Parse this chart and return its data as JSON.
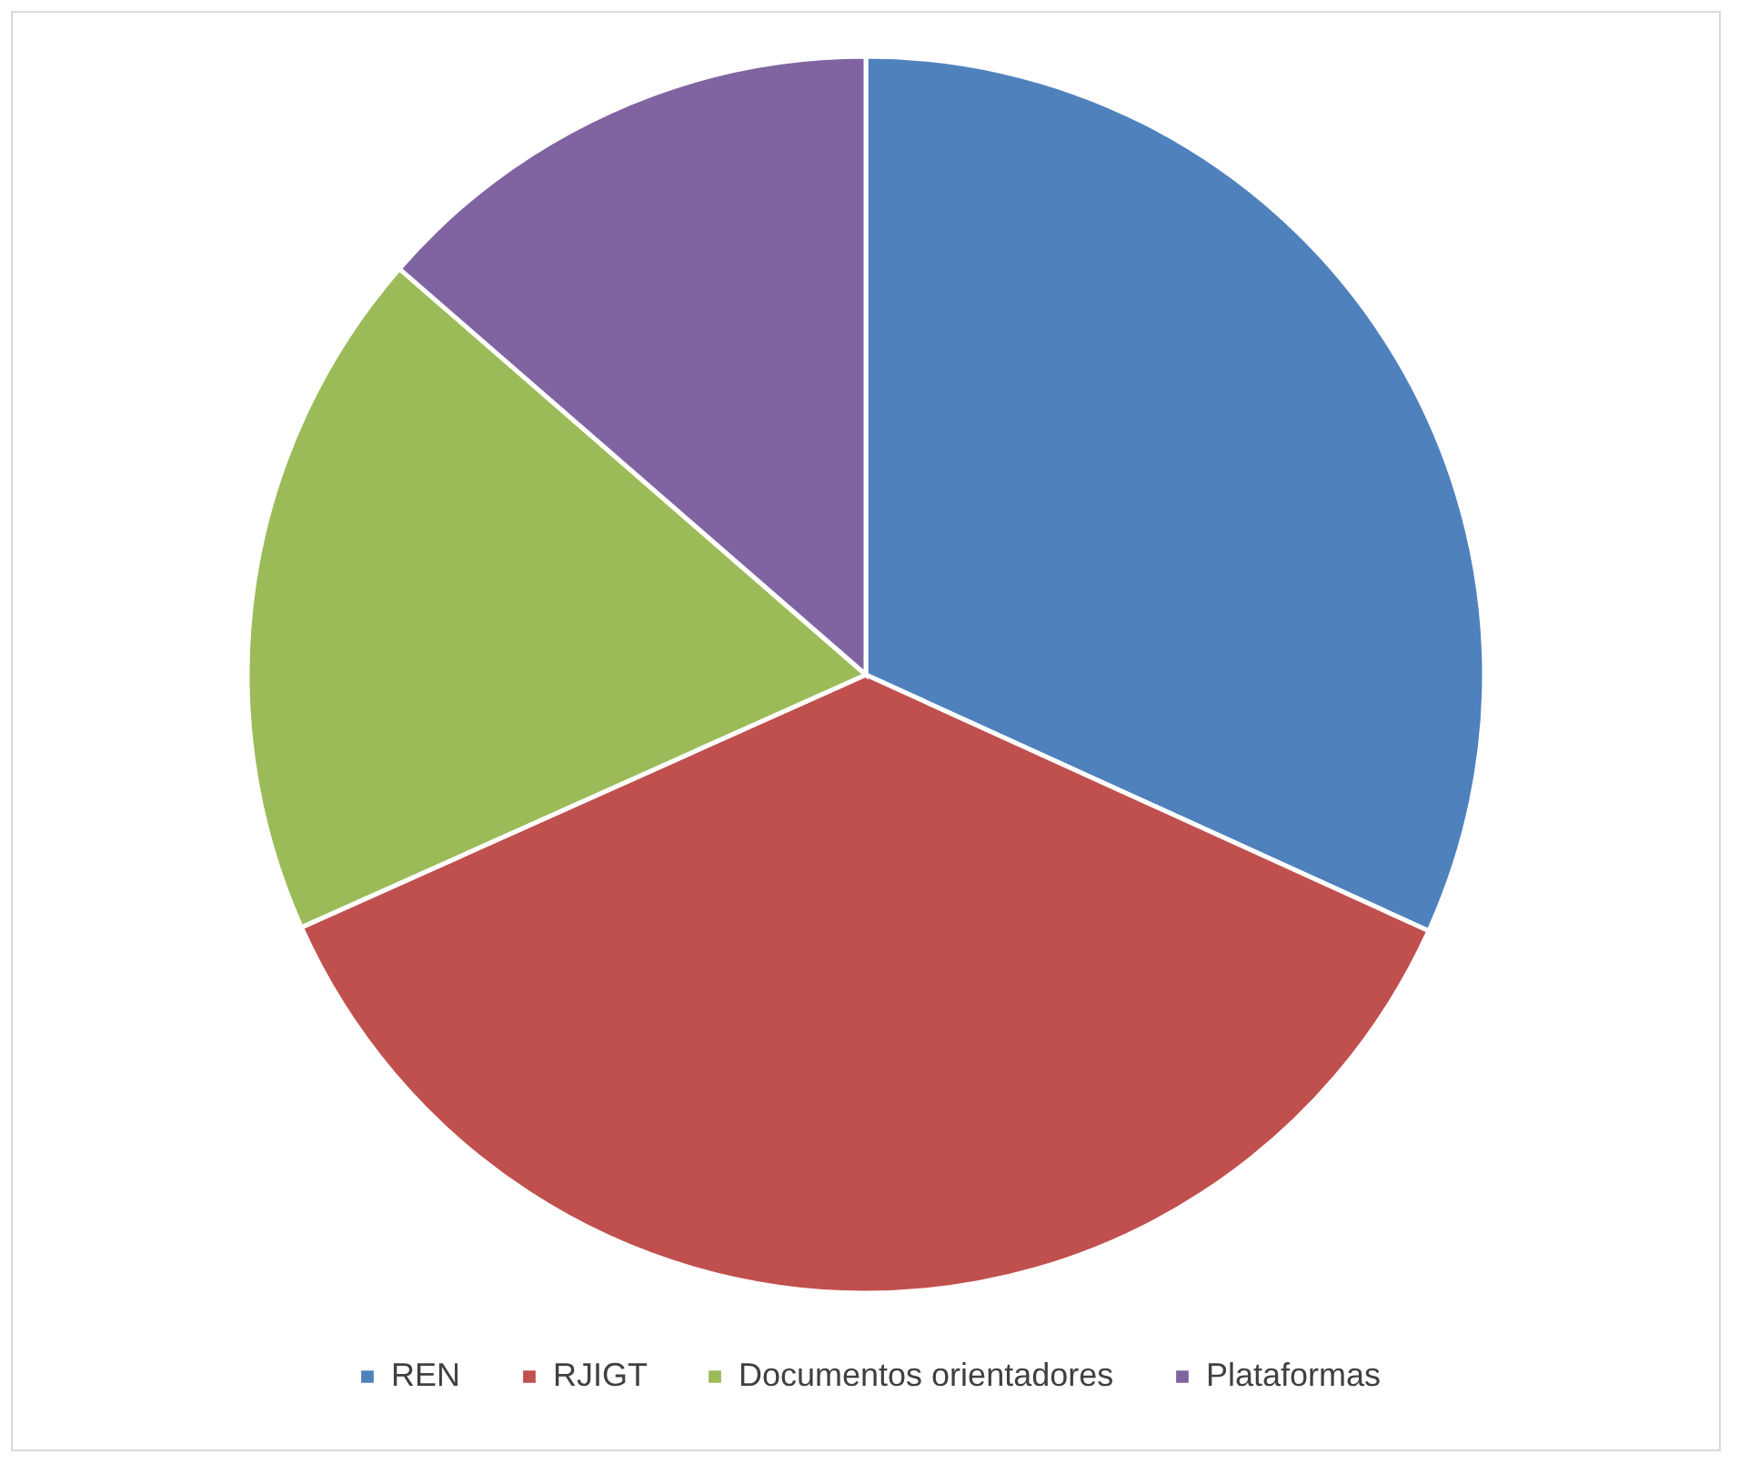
{
  "chart_data": {
    "type": "pie",
    "categories": [
      "REN",
      "RJIGT",
      "Documentos orientadores",
      "Plataformas"
    ],
    "values": [
      31.8,
      36.5,
      18.1,
      13.6
    ],
    "colors": [
      "#4f81bd",
      "#c0504d",
      "#9bbb59",
      "#8064a2"
    ],
    "legend": "bottom"
  }
}
